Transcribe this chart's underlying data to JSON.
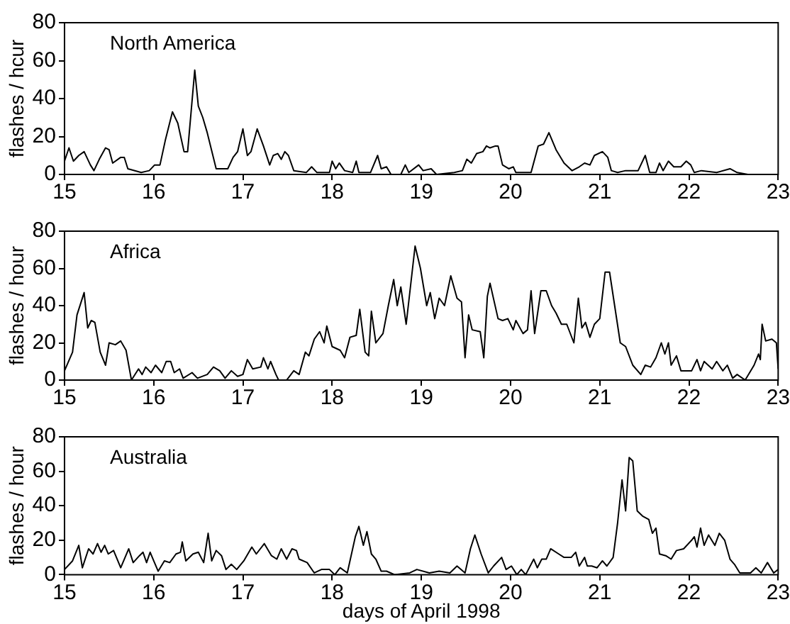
{
  "chart_data": [
    {
      "type": "line",
      "ylabel": "flashes / hcur",
      "annotations": [
        "North America"
      ],
      "xlim": [
        15,
        23
      ],
      "xticks": [
        15,
        16,
        17,
        18,
        19,
        20,
        21,
        22,
        23
      ],
      "ylim": [
        0,
        80
      ],
      "yticks": [
        0,
        20,
        40,
        60,
        80
      ],
      "grid": false,
      "legend": false,
      "marker": "none",
      "line_style": "solid",
      "x": [
        15,
        15.05,
        15.1,
        15.16,
        15.22,
        15.29,
        15.33,
        15.39,
        15.46,
        15.5,
        15.54,
        15.63,
        15.67,
        15.71,
        15.86,
        15.95,
        16.01,
        16.07,
        16.13,
        16.21,
        16.27,
        16.34,
        16.38,
        16.46,
        16.5,
        16.55,
        16.6,
        16.7,
        16.83,
        16.89,
        16.94,
        17,
        17.05,
        17.09,
        17.16,
        17.23,
        17.3,
        17.34,
        17.39,
        17.43,
        17.47,
        17.51,
        17.57,
        17.71,
        17.77,
        17.83,
        17.97,
        18,
        18.04,
        18.08,
        18.14,
        18.23,
        18.27,
        18.3,
        18.43,
        18.51,
        18.55,
        18.61,
        18.66,
        18.77,
        18.82,
        18.86,
        18.97,
        19.02,
        19.11,
        19.17,
        19.37,
        19.46,
        19.51,
        19.56,
        19.62,
        19.69,
        19.73,
        19.77,
        19.83,
        19.86,
        19.91,
        19.98,
        20.03,
        20.06,
        20.23,
        20.31,
        20.37,
        20.43,
        20.51,
        20.6,
        20.69,
        20.77,
        20.83,
        20.89,
        20.94,
        21.03,
        21.09,
        21.13,
        21.2,
        21.29,
        21.43,
        21.51,
        21.56,
        21.63,
        21.67,
        21.71,
        21.77,
        21.83,
        21.91,
        21.97,
        22.02,
        22.06,
        22.14,
        22.31,
        22.46,
        22.54,
        22.66,
        23
      ],
      "series": [
        {
          "color": "#000000",
          "values": [
            7,
            14,
            7,
            10,
            12,
            5,
            2,
            8,
            14,
            13,
            6,
            9,
            9,
            3,
            1,
            2,
            5,
            5,
            18,
            33,
            27,
            12,
            12,
            55,
            36,
            30,
            22,
            3,
            3,
            9,
            12,
            24,
            10,
            12,
            24,
            15,
            5,
            10,
            11,
            8,
            12,
            10,
            2,
            1,
            4,
            1,
            1,
            7,
            3,
            6,
            2,
            1,
            7,
            1,
            1,
            10,
            3,
            4,
            0,
            0,
            5,
            1,
            5,
            2,
            3,
            0,
            1,
            2,
            8,
            6,
            11,
            12,
            15,
            14,
            15,
            15,
            5,
            3,
            4,
            1,
            1,
            15,
            16,
            22,
            13,
            6,
            2,
            4,
            6,
            5,
            10,
            12,
            9,
            2,
            1,
            2,
            2,
            10,
            1,
            1,
            6,
            2,
            7,
            4,
            4,
            7,
            5,
            1,
            2,
            1,
            3,
            1,
            0,
            0
          ]
        }
      ]
    },
    {
      "type": "line",
      "ylabel": "flashes / hour",
      "annotations": [
        "Africa"
      ],
      "xlim": [
        15,
        23
      ],
      "xticks": [
        15,
        16,
        17,
        18,
        19,
        20,
        21,
        22,
        23
      ],
      "ylim": [
        0,
        80
      ],
      "yticks": [
        0,
        20,
        40,
        60,
        80
      ],
      "grid": false,
      "legend": false,
      "marker": "none",
      "line_style": "solid",
      "x": [
        15,
        15.09,
        15.14,
        15.22,
        15.26,
        15.3,
        15.34,
        15.4,
        15.46,
        15.5,
        15.57,
        15.63,
        15.69,
        15.75,
        15.83,
        15.87,
        15.91,
        15.97,
        16.02,
        16.09,
        16.14,
        16.19,
        16.23,
        16.29,
        16.33,
        16.43,
        16.49,
        16.6,
        16.67,
        16.74,
        16.8,
        16.87,
        16.94,
        17,
        17.05,
        17.11,
        17.2,
        17.23,
        17.28,
        17.31,
        17.37,
        17.4,
        17.49,
        17.57,
        17.63,
        17.7,
        17.74,
        17.8,
        17.86,
        17.91,
        17.94,
        18,
        18.09,
        18.14,
        18.2,
        18.27,
        18.31,
        18.37,
        18.41,
        18.44,
        18.49,
        18.57,
        18.63,
        18.69,
        18.73,
        18.77,
        18.83,
        18.93,
        18.99,
        19.06,
        19.1,
        19.15,
        19.2,
        19.26,
        19.33,
        19.4,
        19.45,
        19.49,
        19.53,
        19.57,
        19.66,
        19.7,
        19.74,
        19.77,
        19.86,
        19.91,
        19.97,
        20.03,
        20.06,
        20.14,
        20.19,
        20.23,
        20.27,
        20.34,
        20.4,
        20.46,
        20.51,
        20.57,
        20.63,
        20.71,
        20.76,
        20.8,
        20.84,
        20.89,
        20.94,
        21,
        21.06,
        21.11,
        21.23,
        21.29,
        21.37,
        21.46,
        21.51,
        21.57,
        21.63,
        21.69,
        21.73,
        21.77,
        21.8,
        21.86,
        21.91,
        22.03,
        22.09,
        22.13,
        22.17,
        22.26,
        22.31,
        22.38,
        22.43,
        22.49,
        22.54,
        22.63,
        22.73,
        22.78,
        22.8,
        22.82,
        22.86,
        22.93,
        22.98,
        23
      ],
      "series": [
        {
          "color": "#000000",
          "values": [
            5,
            15,
            35,
            47,
            28,
            32,
            31,
            15,
            8,
            20,
            19,
            21,
            16,
            0,
            6,
            3,
            7,
            4,
            8,
            4,
            10,
            10,
            4,
            6,
            1,
            4,
            1,
            3,
            7,
            5,
            1,
            5,
            2,
            3,
            11,
            6,
            7,
            12,
            6,
            10,
            3,
            0,
            0,
            5,
            3,
            15,
            13,
            22,
            26,
            20,
            29,
            18,
            16,
            12,
            23,
            24,
            38,
            15,
            13,
            37,
            20,
            25,
            40,
            54,
            40,
            50,
            30,
            72,
            60,
            40,
            47,
            33,
            44,
            40,
            56,
            44,
            42,
            12,
            35,
            27,
            26,
            12,
            45,
            52,
            33,
            32,
            33,
            27,
            32,
            25,
            27,
            48,
            25,
            48,
            48,
            40,
            36,
            30,
            30,
            20,
            44,
            28,
            31,
            23,
            30,
            33,
            58,
            58,
            20,
            18,
            8,
            3,
            8,
            7,
            12,
            20,
            14,
            20,
            8,
            13,
            5,
            5,
            11,
            5,
            10,
            6,
            10,
            5,
            8,
            1,
            3,
            0,
            8,
            14,
            11,
            30,
            21,
            22,
            20,
            6
          ]
        }
      ]
    },
    {
      "type": "line",
      "xlabel": "days of April 1998",
      "ylabel": "flashes / hour",
      "annotations": [
        "Australia"
      ],
      "xlim": [
        15,
        23
      ],
      "xticks": [
        15,
        16,
        17,
        18,
        19,
        20,
        21,
        22,
        23
      ],
      "ylim": [
        0,
        80
      ],
      "yticks": [
        0,
        20,
        40,
        60,
        80
      ],
      "grid": false,
      "legend": false,
      "marker": "none",
      "line_style": "solid",
      "x": [
        15,
        15.09,
        15.16,
        15.2,
        15.27,
        15.32,
        15.37,
        15.41,
        15.45,
        15.49,
        15.55,
        15.63,
        15.72,
        15.77,
        15.84,
        15.88,
        15.92,
        15.96,
        16,
        16.05,
        16.12,
        16.18,
        16.25,
        16.3,
        16.32,
        16.36,
        16.44,
        16.5,
        16.56,
        16.61,
        16.65,
        16.7,
        16.76,
        16.81,
        16.87,
        16.93,
        17.01,
        17.1,
        17.15,
        17.24,
        17.32,
        17.38,
        17.43,
        17.49,
        17.55,
        17.6,
        17.63,
        17.72,
        17.8,
        17.88,
        17.97,
        18.03,
        18.09,
        18.17,
        18.26,
        18.3,
        18.35,
        18.39,
        18.44,
        18.49,
        18.55,
        18.61,
        18.7,
        18.87,
        18.95,
        19.09,
        19.2,
        19.32,
        19.4,
        19.49,
        19.55,
        19.6,
        19.67,
        19.75,
        19.81,
        19.9,
        19.95,
        20.01,
        20.07,
        20.12,
        20.17,
        20.26,
        20.3,
        20.35,
        20.4,
        20.45,
        20.54,
        20.6,
        20.68,
        20.73,
        20.77,
        20.83,
        20.86,
        20.91,
        20.97,
        21.03,
        21.08,
        21.15,
        21.2,
        21.25,
        21.29,
        21.33,
        21.37,
        21.42,
        21.48,
        21.55,
        21.59,
        21.63,
        21.67,
        21.74,
        21.8,
        21.86,
        21.94,
        22.03,
        22.06,
        22.09,
        22.13,
        22.17,
        22.22,
        22.29,
        22.34,
        22.4,
        22.46,
        22.51,
        22.57,
        22.69,
        22.75,
        22.81,
        22.88,
        22.95,
        23
      ],
      "series": [
        {
          "color": "#000000",
          "values": [
            3,
            8,
            17,
            4,
            15,
            12,
            18,
            13,
            17,
            12,
            14,
            4,
            15,
            7,
            11,
            13,
            7,
            13,
            8,
            2,
            8,
            7,
            12,
            13,
            19,
            8,
            12,
            13,
            7,
            24,
            8,
            14,
            11,
            3,
            6,
            3,
            8,
            16,
            12,
            18,
            11,
            9,
            15,
            9,
            15,
            14,
            9,
            7,
            1,
            3,
            3,
            0,
            4,
            1,
            22,
            28,
            17,
            25,
            12,
            9,
            2,
            2,
            0,
            1,
            3,
            1,
            2,
            1,
            5,
            1,
            15,
            23,
            12,
            1,
            5,
            10,
            3,
            5,
            0,
            3,
            0,
            9,
            4,
            9,
            9,
            15,
            12,
            10,
            10,
            13,
            5,
            10,
            5,
            5,
            4,
            8,
            5,
            10,
            30,
            55,
            37,
            68,
            66,
            37,
            34,
            32,
            24,
            27,
            12,
            11,
            9,
            14,
            15,
            20,
            22,
            16,
            27,
            17,
            23,
            17,
            24,
            20,
            9,
            6,
            1,
            1,
            4,
            1,
            7,
            1,
            3
          ]
        }
      ]
    }
  ]
}
